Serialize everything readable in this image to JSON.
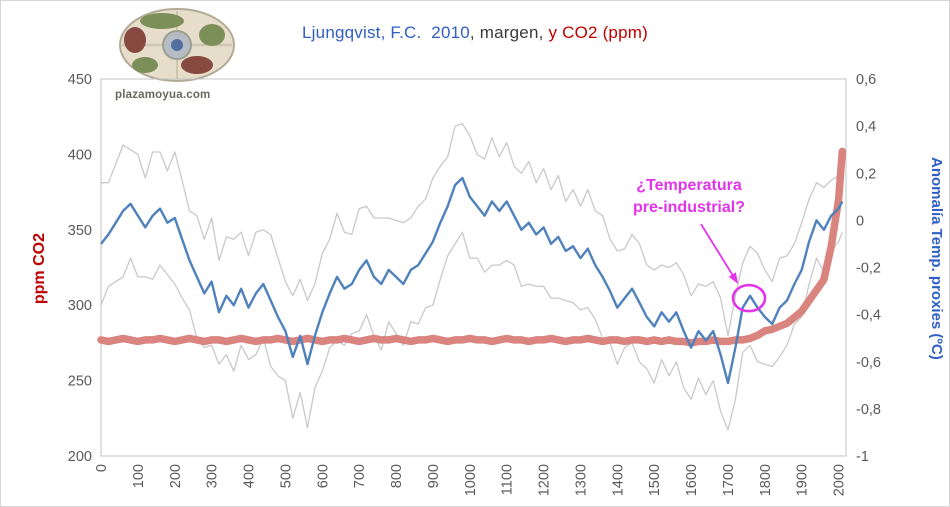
{
  "title": {
    "part1": "Ljungqvist, F.C.  2010",
    "part2": ", margen, ",
    "part3": "y CO2 (ppm)",
    "part1_color": "#2f5ec4",
    "part2_color": "#3a3a3a",
    "part3_color": "#c00000"
  },
  "logo": {
    "caption": "plazamoyua.com"
  },
  "axes": {
    "left_label": "ppm CO2",
    "left_label_color": "#c00000",
    "right_label": "Anomalía Temp. proxies (ºC)",
    "right_label_color": "#2f5ec4",
    "left_ticks": [
      450,
      400,
      350,
      300,
      250,
      200
    ],
    "right_ticks": [
      "0,6",
      "0,4",
      "0,2",
      "0",
      "-0,2",
      "-0,4",
      "-0,6",
      "-0,8",
      "-1"
    ],
    "right_tick_values": [
      0.6,
      0.4,
      0.2,
      0,
      -0.2,
      -0.4,
      -0.6,
      -0.8,
      -1
    ],
    "x_ticks": [
      0,
      100,
      200,
      300,
      400,
      500,
      600,
      700,
      800,
      900,
      1000,
      1100,
      1200,
      1300,
      1400,
      1500,
      1600,
      1700,
      1800,
      1900,
      2000
    ],
    "tick_color": "#595959",
    "frame_color": "#c3c3c3"
  },
  "chart_data": {
    "type": "line",
    "title": "Ljungqvist, F.C. 2010, margen, y CO2 (ppm)",
    "x_axis": {
      "range": [
        0,
        2020
      ],
      "tick_step": 100
    },
    "left_axis": {
      "label": "ppm CO2",
      "range": [
        200,
        450
      ]
    },
    "right_axis": {
      "label": "Anomalía Temp. proxies (ºC)",
      "range": [
        -1,
        0.6
      ]
    },
    "grid": false,
    "legend": "none",
    "x": [
      0,
      20,
      40,
      60,
      80,
      100,
      120,
      140,
      160,
      180,
      200,
      220,
      240,
      260,
      280,
      300,
      320,
      340,
      360,
      380,
      400,
      420,
      440,
      460,
      480,
      500,
      520,
      540,
      560,
      580,
      600,
      620,
      640,
      660,
      680,
      700,
      720,
      740,
      760,
      780,
      800,
      820,
      840,
      860,
      880,
      900,
      920,
      940,
      960,
      980,
      1000,
      1020,
      1040,
      1060,
      1080,
      1100,
      1120,
      1140,
      1160,
      1180,
      1200,
      1220,
      1240,
      1260,
      1280,
      1300,
      1320,
      1340,
      1360,
      1380,
      1400,
      1420,
      1440,
      1460,
      1480,
      1500,
      1520,
      1540,
      1560,
      1580,
      1600,
      1620,
      1640,
      1660,
      1680,
      1700,
      1720,
      1740,
      1760,
      1780,
      1800,
      1820,
      1840,
      1860,
      1880,
      1900,
      1920,
      1940,
      1960,
      1980,
      2000,
      2010
    ],
    "series": [
      {
        "name": "Anomalía Temp. proxies (ºC)",
        "axis": "right",
        "color": "#4f81bd",
        "width": 2.4,
        "values": [
          -0.1,
          -0.06,
          -0.01,
          0.04,
          0.07,
          0.02,
          -0.03,
          0.02,
          0.05,
          -0.01,
          0.01,
          -0.08,
          -0.17,
          -0.24,
          -0.31,
          -0.26,
          -0.39,
          -0.32,
          -0.36,
          -0.29,
          -0.37,
          -0.31,
          -0.27,
          -0.34,
          -0.41,
          -0.47,
          -0.58,
          -0.49,
          -0.61,
          -0.49,
          -0.39,
          -0.31,
          -0.24,
          -0.29,
          -0.27,
          -0.21,
          -0.17,
          -0.24,
          -0.27,
          -0.21,
          -0.24,
          -0.27,
          -0.21,
          -0.19,
          -0.14,
          -0.09,
          -0.01,
          0.06,
          0.15,
          0.18,
          0.1,
          0.06,
          0.02,
          0.08,
          0.04,
          0.08,
          0.02,
          -0.04,
          -0.01,
          -0.06,
          -0.03,
          -0.1,
          -0.07,
          -0.13,
          -0.11,
          -0.16,
          -0.12,
          -0.19,
          -0.24,
          -0.3,
          -0.37,
          -0.33,
          -0.29,
          -0.35,
          -0.41,
          -0.45,
          -0.39,
          -0.43,
          -0.39,
          -0.47,
          -0.54,
          -0.47,
          -0.51,
          -0.47,
          -0.57,
          -0.69,
          -0.54,
          -0.37,
          -0.32,
          -0.37,
          -0.41,
          -0.44,
          -0.37,
          -0.34,
          -0.27,
          -0.21,
          -0.09,
          0.0,
          -0.04,
          0.02,
          0.05,
          0.08
        ]
      },
      {
        "name": "margen (banda superior e inferior)",
        "axis": "right",
        "color": "#c9c9c9",
        "width": 1.3,
        "margin_values": [
          0.26,
          0.22,
          0.25,
          0.28,
          0.23,
          0.26,
          0.21,
          0.27,
          0.24,
          0.22,
          0.28,
          0.25,
          0.21,
          0.26,
          0.23,
          0.27,
          0.22,
          0.25,
          0.28,
          0.24,
          0.22,
          0.26,
          0.23,
          0.28,
          0.25,
          0.21,
          0.26,
          0.24,
          0.27,
          0.22,
          0.25,
          0.23,
          0.27,
          0.24,
          0.21,
          0.26,
          0.23,
          0.25,
          0.28,
          0.22,
          0.24,
          0.26,
          0.22,
          0.25,
          0.23,
          0.27,
          0.24,
          0.21,
          0.25,
          0.23,
          0.26,
          0.22,
          0.24,
          0.27,
          0.23,
          0.25,
          0.21,
          0.24,
          0.26,
          0.22,
          0.25,
          0.23,
          0.26,
          0.21,
          0.24,
          0.22,
          0.25,
          0.23,
          0.26,
          0.22,
          0.24,
          0.21,
          0.23,
          0.25,
          0.22,
          0.24,
          0.2,
          0.23,
          0.21,
          0.24,
          0.22,
          0.2,
          0.23,
          0.21,
          0.24,
          0.2,
          0.22,
          0.19,
          0.21,
          0.23,
          0.2,
          0.18,
          0.21,
          0.19,
          0.17,
          0.2,
          0.18,
          0.16,
          0.18,
          0.15,
          0.14,
          0.13
        ]
      },
      {
        "name": "CO2 (ppm)",
        "axis": "left",
        "color": "#d9847e",
        "width": 7.5,
        "values": [
          277,
          276,
          277,
          278,
          277,
          276,
          277,
          277,
          278,
          277,
          276,
          277,
          278,
          277,
          276,
          277,
          277,
          276,
          277,
          278,
          277,
          276,
          277,
          277,
          278,
          277,
          276,
          277,
          278,
          277,
          276,
          277,
          277,
          278,
          277,
          276,
          277,
          278,
          277,
          277,
          278,
          277,
          276,
          277,
          277,
          278,
          277,
          276,
          277,
          277,
          278,
          277,
          277,
          276,
          277,
          278,
          277,
          277,
          276,
          277,
          277,
          278,
          277,
          276,
          277,
          277,
          278,
          277,
          276,
          277,
          277,
          276,
          277,
          277,
          276,
          277,
          276,
          277,
          276,
          276,
          275,
          276,
          276,
          277,
          276,
          276,
          277,
          277,
          278,
          280,
          283,
          284,
          286,
          288,
          292,
          296,
          303,
          310,
          317,
          339,
          370,
          402
        ]
      }
    ],
    "annotation": {
      "line1": "¿Temperatura",
      "line2": "pre-industrial?",
      "color": "#e334ea",
      "target_year": 1757,
      "target_value": -0.33
    }
  }
}
